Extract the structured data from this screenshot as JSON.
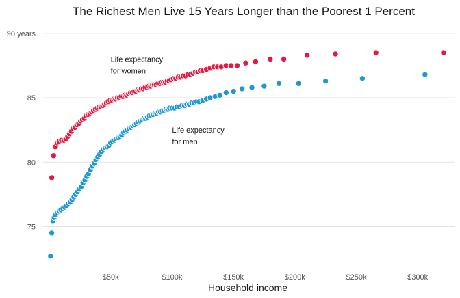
{
  "chart_data": {
    "type": "scatter",
    "title": "The Richest Men Live 15 Years Longer than the Poorest 1 Percent",
    "xlabel": "Household income",
    "ylabel": "",
    "xlim": [
      -5000,
      330000
    ],
    "ylim": [
      72,
      91
    ],
    "grid": true,
    "y_ticks": [
      {
        "value": 90,
        "label": "90 years"
      },
      {
        "value": 85,
        "label": "85"
      },
      {
        "value": 80,
        "label": "80"
      },
      {
        "value": 75,
        "label": "75"
      }
    ],
    "x_ticks": [
      {
        "value": 50000,
        "label": "$50k"
      },
      {
        "value": 100000,
        "label": "$100k"
      },
      {
        "value": 150000,
        "label": "$150k"
      },
      {
        "value": 200000,
        "label": "$200k"
      },
      {
        "value": 250000,
        "label": "$250k"
      },
      {
        "value": 300000,
        "label": "$300k"
      }
    ],
    "annotations": [
      {
        "lines": [
          "Life expectancy",
          "for women"
        ],
        "x": 50000,
        "y": 87.8
      },
      {
        "lines": [
          "Life expectancy",
          "for men"
        ],
        "x": 100000,
        "y": 82.3
      }
    ],
    "series": [
      {
        "color": "#e8173f",
        "points": [
          [
            2000,
            78.8
          ],
          [
            3500,
            80.5
          ],
          [
            5000,
            81.2
          ],
          [
            6500,
            81.5
          ],
          [
            8000,
            81.6
          ],
          [
            10000,
            81.7
          ],
          [
            12000,
            81.7
          ],
          [
            13500,
            81.8
          ],
          [
            15000,
            82.0
          ],
          [
            16500,
            82.2
          ],
          [
            18000,
            82.4
          ],
          [
            19500,
            82.6
          ],
          [
            21000,
            82.7
          ],
          [
            22500,
            82.9
          ],
          [
            24000,
            83.0
          ],
          [
            25500,
            83.2
          ],
          [
            27000,
            83.3
          ],
          [
            28500,
            83.4
          ],
          [
            30000,
            83.6
          ],
          [
            31500,
            83.7
          ],
          [
            33000,
            83.8
          ],
          [
            34500,
            83.9
          ],
          [
            36000,
            84.0
          ],
          [
            37500,
            84.1
          ],
          [
            39000,
            84.2
          ],
          [
            40500,
            84.3
          ],
          [
            42000,
            84.3
          ],
          [
            43500,
            84.4
          ],
          [
            45000,
            84.5
          ],
          [
            46500,
            84.6
          ],
          [
            48000,
            84.7
          ],
          [
            49500,
            84.8
          ],
          [
            51000,
            84.8
          ],
          [
            52500,
            84.9
          ],
          [
            54000,
            84.9
          ],
          [
            55500,
            85.0
          ],
          [
            57000,
            85.0
          ],
          [
            58500,
            85.1
          ],
          [
            60000,
            85.1
          ],
          [
            61500,
            85.2
          ],
          [
            63000,
            85.2
          ],
          [
            64500,
            85.3
          ],
          [
            66000,
            85.4
          ],
          [
            67500,
            85.4
          ],
          [
            69000,
            85.5
          ],
          [
            70500,
            85.5
          ],
          [
            72000,
            85.6
          ],
          [
            73500,
            85.6
          ],
          [
            75000,
            85.7
          ],
          [
            76500,
            85.7
          ],
          [
            78000,
            85.8
          ],
          [
            79500,
            85.8
          ],
          [
            81000,
            85.9
          ],
          [
            82500,
            85.9
          ],
          [
            84000,
            86.0
          ],
          [
            85500,
            86.0
          ],
          [
            87000,
            86.0
          ],
          [
            88500,
            86.1
          ],
          [
            90000,
            86.1
          ],
          [
            91500,
            86.2
          ],
          [
            93000,
            86.2
          ],
          [
            94500,
            86.2
          ],
          [
            96000,
            86.3
          ],
          [
            97500,
            86.3
          ],
          [
            99000,
            86.4
          ],
          [
            101000,
            86.5
          ],
          [
            103000,
            86.5
          ],
          [
            105000,
            86.6
          ],
          [
            107000,
            86.6
          ],
          [
            109000,
            86.7
          ],
          [
            111000,
            86.7
          ],
          [
            113000,
            86.8
          ],
          [
            115000,
            86.8
          ],
          [
            117000,
            86.9
          ],
          [
            119000,
            87.0
          ],
          [
            121000,
            87.0
          ],
          [
            123000,
            87.1
          ],
          [
            125000,
            87.1
          ],
          [
            128000,
            87.2
          ],
          [
            131000,
            87.3
          ],
          [
            134000,
            87.4
          ],
          [
            137000,
            87.4
          ],
          [
            140000,
            87.4
          ],
          [
            144000,
            87.5
          ],
          [
            148000,
            87.5
          ],
          [
            153000,
            87.5
          ],
          [
            160000,
            87.7
          ],
          [
            168000,
            87.8
          ],
          [
            180000,
            88.0
          ],
          [
            191000,
            88.0
          ],
          [
            210000,
            88.3
          ],
          [
            233000,
            88.4
          ],
          [
            266000,
            88.5
          ],
          [
            321000,
            88.5
          ]
        ]
      },
      {
        "color": "#1f98d2",
        "points": [
          [
            1000,
            72.7
          ],
          [
            2000,
            74.5
          ],
          [
            3000,
            75.4
          ],
          [
            4000,
            75.7
          ],
          [
            5000,
            75.9
          ],
          [
            6500,
            76.1
          ],
          [
            8000,
            76.2
          ],
          [
            9500,
            76.3
          ],
          [
            11000,
            76.4
          ],
          [
            12500,
            76.5
          ],
          [
            14000,
            76.6
          ],
          [
            15500,
            76.8
          ],
          [
            17000,
            76.9
          ],
          [
            18500,
            77.1
          ],
          [
            20000,
            77.3
          ],
          [
            21500,
            77.5
          ],
          [
            23000,
            77.7
          ],
          [
            24500,
            77.9
          ],
          [
            26000,
            78.1
          ],
          [
            27500,
            78.4
          ],
          [
            29000,
            78.6
          ],
          [
            30500,
            78.9
          ],
          [
            32000,
            79.1
          ],
          [
            33500,
            79.4
          ],
          [
            35000,
            79.7
          ],
          [
            36500,
            79.9
          ],
          [
            38000,
            80.2
          ],
          [
            39500,
            80.4
          ],
          [
            41000,
            80.6
          ],
          [
            42500,
            80.8
          ],
          [
            44000,
            81.0
          ],
          [
            45500,
            81.1
          ],
          [
            47000,
            81.2
          ],
          [
            48500,
            81.3
          ],
          [
            50000,
            81.5
          ],
          [
            51500,
            81.6
          ],
          [
            53000,
            81.7
          ],
          [
            54500,
            81.8
          ],
          [
            56000,
            81.9
          ],
          [
            57500,
            82.0
          ],
          [
            59000,
            82.1
          ],
          [
            60500,
            82.3
          ],
          [
            62000,
            82.4
          ],
          [
            63500,
            82.5
          ],
          [
            65000,
            82.6
          ],
          [
            66500,
            82.7
          ],
          [
            68000,
            82.8
          ],
          [
            69500,
            82.9
          ],
          [
            71000,
            83.0
          ],
          [
            72500,
            83.1
          ],
          [
            74000,
            83.2
          ],
          [
            75500,
            83.3
          ],
          [
            77000,
            83.4
          ],
          [
            78500,
            83.4
          ],
          [
            80000,
            83.5
          ],
          [
            81500,
            83.6
          ],
          [
            83000,
            83.6
          ],
          [
            84500,
            83.7
          ],
          [
            86000,
            83.8
          ],
          [
            87500,
            83.8
          ],
          [
            89000,
            83.9
          ],
          [
            90500,
            83.9
          ],
          [
            92000,
            84.0
          ],
          [
            93500,
            84.0
          ],
          [
            95000,
            84.1
          ],
          [
            96500,
            84.1
          ],
          [
            98000,
            84.2
          ],
          [
            100000,
            84.2
          ],
          [
            102000,
            84.2
          ],
          [
            104000,
            84.3
          ],
          [
            106000,
            84.3
          ],
          [
            108000,
            84.4
          ],
          [
            110000,
            84.4
          ],
          [
            112000,
            84.5
          ],
          [
            114000,
            84.5
          ],
          [
            116000,
            84.6
          ],
          [
            118000,
            84.6
          ],
          [
            120000,
            84.7
          ],
          [
            122000,
            84.7
          ],
          [
            125000,
            84.8
          ],
          [
            128000,
            84.9
          ],
          [
            131000,
            85.0
          ],
          [
            135000,
            85.1
          ],
          [
            139000,
            85.2
          ],
          [
            144000,
            85.4
          ],
          [
            150000,
            85.5
          ],
          [
            157000,
            85.7
          ],
          [
            165000,
            85.8
          ],
          [
            175000,
            85.9
          ],
          [
            187000,
            86.1
          ],
          [
            203000,
            86.1
          ],
          [
            225000,
            86.3
          ],
          [
            255000,
            86.5
          ],
          [
            306000,
            86.8
          ]
        ]
      }
    ]
  }
}
